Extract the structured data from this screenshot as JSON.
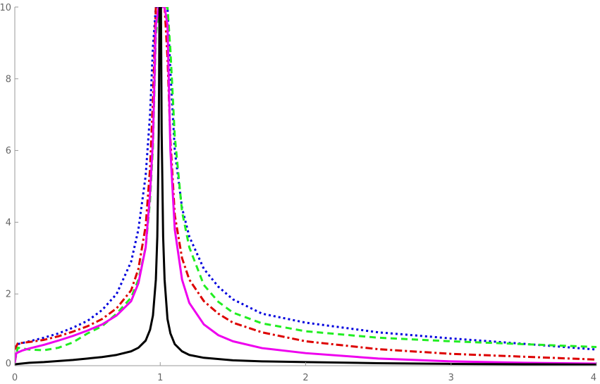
{
  "chart_data": {
    "type": "line",
    "title": "",
    "xlabel": "",
    "ylabel": "",
    "xlim": [
      0,
      4
    ],
    "ylim": [
      0,
      10
    ],
    "grid": false,
    "x_ticks": [
      0,
      1,
      2,
      3,
      4
    ],
    "y_ticks": [
      0,
      2,
      4,
      6,
      8,
      10
    ],
    "x_tick_labels": [
      "0",
      "1",
      "2",
      "3",
      "4"
    ],
    "y_tick_labels": [
      "0",
      "2",
      "4",
      "6",
      "8",
      "10"
    ],
    "series": [
      {
        "color": "#0000dd",
        "dash": "dotted",
        "width": 3,
        "x": [
          0,
          0.02,
          0.1,
          0.2,
          0.3,
          0.4,
          0.5,
          0.6,
          0.7,
          0.8,
          0.85,
          0.9,
          0.93,
          0.95,
          0.97,
          0.99,
          1.01,
          1.03,
          1.05,
          1.07,
          1.1,
          1.15,
          1.2,
          1.3,
          1.4,
          1.5,
          1.7,
          2.0,
          2.5,
          3.0,
          3.5,
          4.0
        ],
        "y": [
          0.5,
          0.6,
          0.68,
          0.78,
          0.9,
          1.06,
          1.25,
          1.55,
          2.0,
          2.9,
          3.8,
          5.3,
          7.0,
          8.9,
          10,
          10,
          10,
          10,
          10,
          8.2,
          6.0,
          4.4,
          3.6,
          2.7,
          2.2,
          1.85,
          1.45,
          1.2,
          0.93,
          0.76,
          0.61,
          0.45
        ]
      },
      {
        "color": "#dd0000",
        "dash": "dashdot",
        "width": 3,
        "x": [
          0,
          0.02,
          0.1,
          0.2,
          0.3,
          0.4,
          0.5,
          0.6,
          0.7,
          0.8,
          0.85,
          0.9,
          0.93,
          0.95,
          0.97,
          0.99,
          1.01,
          1.03,
          1.05,
          1.07,
          1.1,
          1.15,
          1.2,
          1.3,
          1.4,
          1.5,
          1.7,
          2.0,
          2.5,
          3.0,
          3.5,
          4.0
        ],
        "y": [
          0.45,
          0.62,
          0.66,
          0.72,
          0.82,
          0.95,
          1.1,
          1.3,
          1.6,
          2.1,
          2.7,
          3.9,
          5.5,
          7.4,
          10,
          10,
          10,
          10,
          8.6,
          6.3,
          4.2,
          3.0,
          2.4,
          1.8,
          1.45,
          1.2,
          0.93,
          0.68,
          0.46,
          0.33,
          0.25,
          0.17
        ]
      },
      {
        "color": "#22ee22",
        "dash": "dashed",
        "width": 3,
        "x": [
          0,
          0.02,
          0.1,
          0.2,
          0.3,
          0.4,
          0.5,
          0.6,
          0.7,
          0.8,
          0.85,
          0.9,
          0.93,
          0.95,
          0.97,
          0.99,
          1.01,
          1.03,
          1.05,
          1.07,
          1.1,
          1.15,
          1.2,
          1.3,
          1.4,
          1.5,
          1.7,
          2.0,
          2.5,
          3.0,
          3.5,
          4.0
        ],
        "y": [
          0.1,
          0.5,
          0.45,
          0.43,
          0.5,
          0.65,
          0.9,
          1.1,
          1.45,
          1.9,
          2.4,
          3.3,
          4.6,
          6.1,
          9.2,
          10,
          10,
          10,
          10,
          8.8,
          6.4,
          4.3,
          3.3,
          2.25,
          1.78,
          1.48,
          1.18,
          0.96,
          0.78,
          0.68,
          0.6,
          0.52
        ]
      },
      {
        "color": "#ee00ee",
        "dash": "solid",
        "width": 3,
        "x": [
          0,
          0.01,
          0.05,
          0.1,
          0.2,
          0.3,
          0.4,
          0.5,
          0.6,
          0.7,
          0.8,
          0.85,
          0.9,
          0.93,
          0.95,
          0.97,
          0.99,
          1.01,
          1.03,
          1.05,
          1.07,
          1.1,
          1.15,
          1.2,
          1.3,
          1.4,
          1.5,
          1.7,
          2.0,
          2.5,
          3.0,
          3.5,
          4.0
        ],
        "y": [
          0.08,
          0.35,
          0.42,
          0.48,
          0.58,
          0.7,
          0.83,
          0.98,
          1.15,
          1.4,
          1.8,
          2.3,
          3.3,
          4.8,
          6.3,
          9.5,
          10,
          10,
          10,
          9.5,
          6.0,
          3.8,
          2.4,
          1.75,
          1.15,
          0.85,
          0.68,
          0.49,
          0.35,
          0.2,
          0.12,
          0.08,
          0.06
        ]
      },
      {
        "color": "#000000",
        "dash": "solid",
        "width": 3,
        "x": [
          0,
          0.1,
          0.2,
          0.3,
          0.4,
          0.5,
          0.6,
          0.7,
          0.8,
          0.85,
          0.9,
          0.93,
          0.95,
          0.97,
          0.98,
          0.99,
          0.995,
          1.005,
          1.01,
          1.02,
          1.03,
          1.05,
          1.07,
          1.1,
          1.15,
          1.2,
          1.3,
          1.5,
          1.7,
          2.0,
          2.5,
          3.0,
          3.5,
          4.0
        ],
        "y": [
          0.04,
          0.08,
          0.1,
          0.13,
          0.16,
          0.2,
          0.24,
          0.3,
          0.4,
          0.5,
          0.7,
          1.0,
          1.4,
          2.4,
          3.6,
          6.5,
          10,
          10,
          6.5,
          3.6,
          2.4,
          1.3,
          0.9,
          0.6,
          0.4,
          0.3,
          0.22,
          0.15,
          0.12,
          0.1,
          0.07,
          0.05,
          0.04,
          0.03
        ]
      }
    ]
  }
}
